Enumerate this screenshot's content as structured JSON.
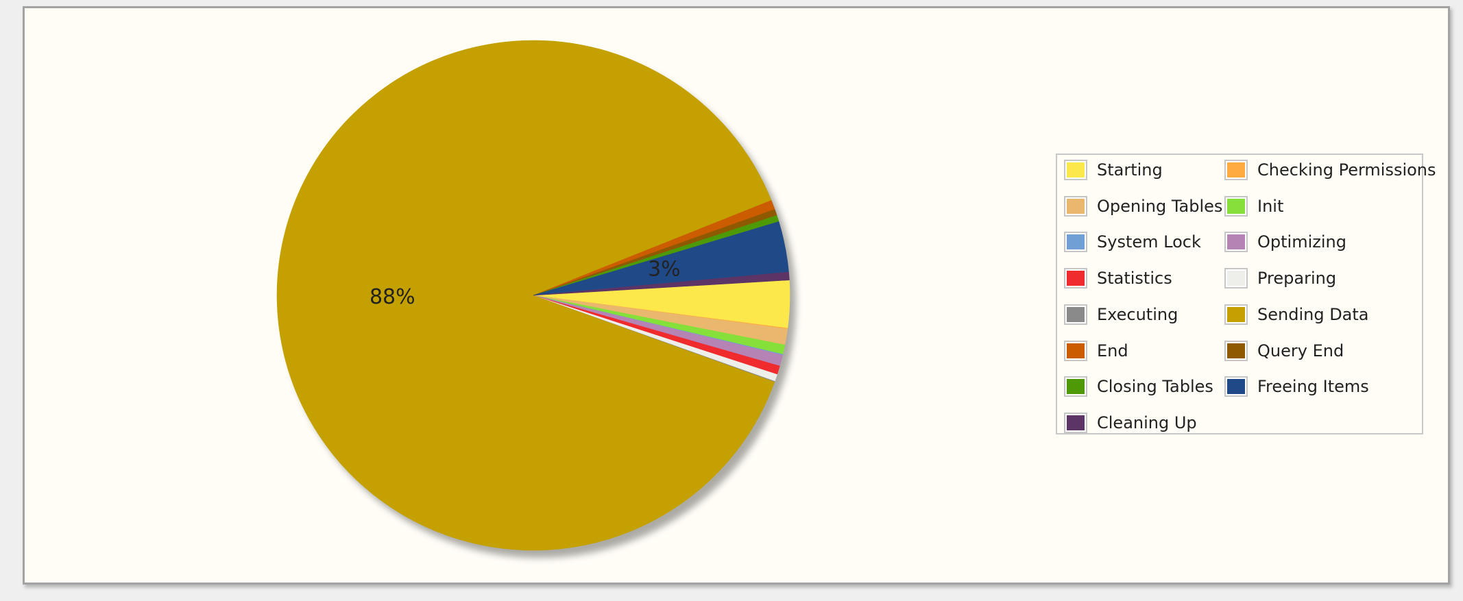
{
  "chart_data": {
    "type": "pie",
    "title": "",
    "slices": [
      {
        "label": "Starting",
        "value": 3.0,
        "color": "#fde84c"
      },
      {
        "label": "Checking Permissions",
        "value": 0.05,
        "color": "#ffab40"
      },
      {
        "label": "Opening Tables",
        "value": 1.0,
        "color": "#eab76e"
      },
      {
        "label": "Init",
        "value": 0.6,
        "color": "#86e03a"
      },
      {
        "label": "System Lock",
        "value": 0.05,
        "color": "#6f9fd4"
      },
      {
        "label": "Optimizing",
        "value": 0.7,
        "color": "#b684b4"
      },
      {
        "label": "Statistics",
        "value": 0.55,
        "color": "#ef2b2d"
      },
      {
        "label": "Preparing",
        "value": 0.45,
        "color": "#eeeeea"
      },
      {
        "label": "Executing",
        "value": 0.05,
        "color": "#8a8a8a"
      },
      {
        "label": "Sending Data",
        "value": 88.0,
        "color": "#c4a000"
      },
      {
        "label": "End",
        "value": 0.6,
        "color": "#cc5c00"
      },
      {
        "label": "Query End",
        "value": 0.4,
        "color": "#8f5902"
      },
      {
        "label": "Closing Tables",
        "value": 0.4,
        "color": "#4e9a06"
      },
      {
        "label": "Freeing Items",
        "value": 3.2,
        "color": "#204a87"
      },
      {
        "label": "Cleaning Up",
        "value": 0.5,
        "color": "#5c3566"
      }
    ],
    "data_labels": [
      {
        "slice": "Sending Data",
        "text": "88%"
      },
      {
        "slice": "Freeing Items",
        "text": "3%"
      }
    ],
    "legend": {
      "placement": "right",
      "columns": 2,
      "items": [
        {
          "label": "Starting",
          "color": "#fde84c"
        },
        {
          "label": "Checking Permissions",
          "color": "#ffab40"
        },
        {
          "label": "Opening Tables",
          "color": "#eab76e"
        },
        {
          "label": "Init",
          "color": "#86e03a"
        },
        {
          "label": "System Lock",
          "color": "#6f9fd4"
        },
        {
          "label": "Optimizing",
          "color": "#b684b4"
        },
        {
          "label": "Statistics",
          "color": "#ef2b2d"
        },
        {
          "label": "Preparing",
          "color": "#eeeeea"
        },
        {
          "label": "Executing",
          "color": "#8a8a8a"
        },
        {
          "label": "Sending Data",
          "color": "#c4a000"
        },
        {
          "label": "End",
          "color": "#cc5c00"
        },
        {
          "label": "Query End",
          "color": "#8f5902"
        },
        {
          "label": "Closing Tables",
          "color": "#4e9a06"
        },
        {
          "label": "Freeing Items",
          "color": "#204a87"
        },
        {
          "label": "Cleaning Up",
          "color": "#5c3566"
        }
      ]
    }
  }
}
